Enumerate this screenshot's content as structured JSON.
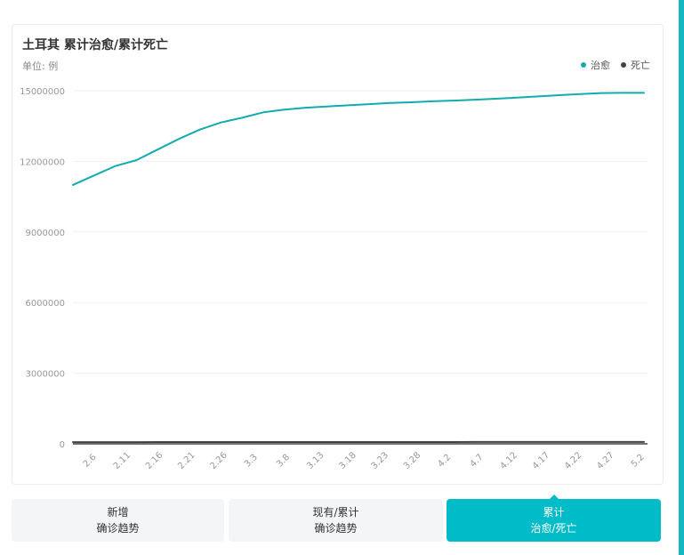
{
  "colors": {
    "recovered": "#14abb0",
    "deaths": "#444444",
    "accent": "#00bcc9"
  },
  "tabs": [
    {
      "line1": "新增",
      "line2": "确诊趋势",
      "active": false
    },
    {
      "line1": "现有/累计",
      "line2": "确诊趋势",
      "active": false
    },
    {
      "line1": "累计",
      "line2": "治愈/死亡",
      "active": true
    }
  ],
  "chart_data": {
    "type": "line",
    "title": "土耳其 累计治愈/累计死亡",
    "unit_label": "单位: 例",
    "legend_position": "top-right",
    "grid": true,
    "ylim": [
      0,
      15000000
    ],
    "yticks": [
      "0",
      "3000000",
      "6000000",
      "9000000",
      "12000000",
      "15000000"
    ],
    "ytick_values": [
      0,
      3000000,
      6000000,
      9000000,
      12000000,
      15000000
    ],
    "xtick_labels": [
      "2.6",
      "2.11",
      "2.16",
      "2.21",
      "2.26",
      "3.3",
      "3.8",
      "3.13",
      "3.18",
      "3.23",
      "3.28",
      "4.2",
      "4.7",
      "4.12",
      "4.17",
      "4.22",
      "4.27",
      "5.2"
    ],
    "series": [
      {
        "name": "治愈",
        "values": [
          11000000,
          11400000,
          11800000,
          12050000,
          12500000,
          12950000,
          13350000,
          13650000,
          13850000,
          14080000,
          14200000,
          14280000,
          14330000,
          14380000,
          14430000,
          14480000,
          14510000,
          14550000,
          14580000,
          14620000,
          14660000,
          14710000,
          14760000,
          14810000,
          14860000,
          14900000,
          14910000,
          14910000
        ]
      },
      {
        "name": "死亡",
        "values": [
          72000,
          72500,
          73000,
          73500,
          74000,
          74300,
          74600,
          74900,
          75200,
          75500,
          75800,
          76000,
          76200,
          76400,
          76600,
          76800,
          77000,
          77200,
          77400,
          77600,
          77800,
          78000,
          78200,
          78400,
          78600,
          78800,
          79000,
          79100
        ]
      }
    ]
  }
}
